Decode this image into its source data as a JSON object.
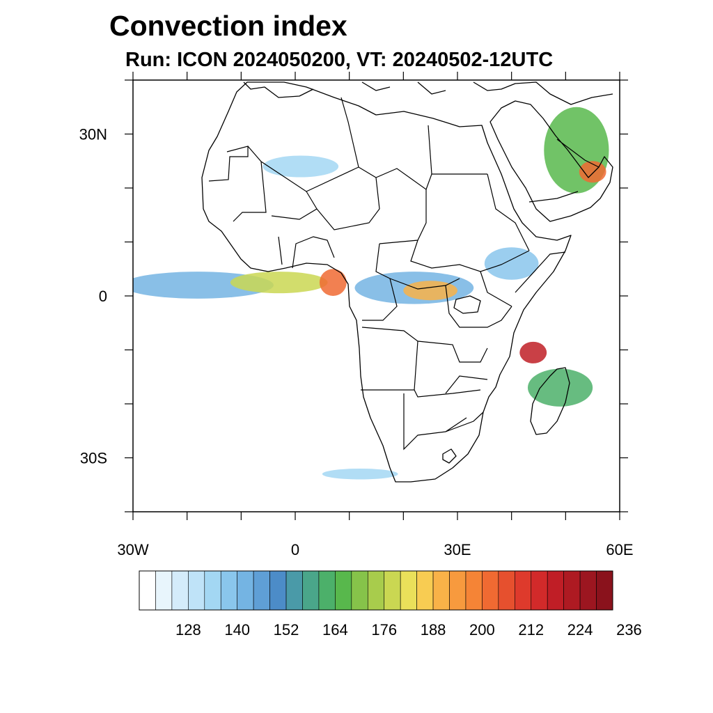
{
  "title": "Convection index",
  "subtitle": "Run: ICON 2024050200,  VT: 20240502-12UTC",
  "map": {
    "region": "Africa",
    "lon_range": [
      -30,
      60
    ],
    "lat_range": [
      -40,
      40
    ],
    "lat_labels": [
      {
        "lat": 30,
        "label": "30N"
      },
      {
        "lat": 0,
        "label": "0"
      },
      {
        "lat": -30,
        "label": "30S"
      }
    ],
    "lon_labels": [
      {
        "lon": -30,
        "label": "30W"
      },
      {
        "lon": 0,
        "label": "0"
      },
      {
        "lon": 30,
        "label": "30E"
      },
      {
        "lon": 60,
        "label": "60E"
      }
    ],
    "lat_ticks": [
      40,
      30,
      20,
      10,
      0,
      -10,
      -20,
      -30,
      -40
    ],
    "lon_ticks": [
      -30,
      -20,
      -10,
      0,
      10,
      20,
      30,
      40,
      50,
      60
    ]
  },
  "colorbar": {
    "colors": [
      "#ffffff",
      "#e8f5fc",
      "#d4ecfa",
      "#bfe3f8",
      "#a3d7f3",
      "#8ac6ec",
      "#74b4e3",
      "#5f9fd6",
      "#4c8cc8",
      "#4a9aa8",
      "#4aa68a",
      "#4cb06a",
      "#58b84c",
      "#86c34a",
      "#a8cc4c",
      "#cad752",
      "#eae05a",
      "#f8cc52",
      "#f9b248",
      "#f79a3e",
      "#f58436",
      "#f06a32",
      "#e6502e",
      "#de3a2c",
      "#d22a2a",
      "#c01e26",
      "#ae1a22",
      "#9c1620",
      "#8a121c"
    ],
    "tick_labels": [
      "128",
      "140",
      "152",
      "164",
      "176",
      "188",
      "200",
      "212",
      "224",
      "236"
    ],
    "tick_values": [
      128,
      140,
      152,
      164,
      176,
      188,
      200,
      212,
      224,
      236
    ]
  },
  "convection_areas": [
    {
      "name": "itcz-atlantic",
      "lon": -18,
      "lat": 2,
      "rx_deg": 14,
      "ry_deg": 2.5,
      "color": "#74b4e3"
    },
    {
      "name": "gulf-of-guinea-core",
      "lon": -3,
      "lat": 2.5,
      "rx_deg": 9,
      "ry_deg": 2,
      "color": "#cad752"
    },
    {
      "name": "cameroon-core",
      "lon": 7,
      "lat": 2.5,
      "rx_deg": 2.5,
      "ry_deg": 2.5,
      "color": "#f06a32"
    },
    {
      "name": "congo-band",
      "lon": 22,
      "lat": 1.5,
      "rx_deg": 11,
      "ry_deg": 3,
      "color": "#74b4e3"
    },
    {
      "name": "congo-core",
      "lon": 25,
      "lat": 1,
      "rx_deg": 5,
      "ry_deg": 1.8,
      "color": "#f9b248"
    },
    {
      "name": "cyclone-core",
      "lon": 44,
      "lat": -10.5,
      "rx_deg": 2.5,
      "ry_deg": 2,
      "color": "#c01e26"
    },
    {
      "name": "cyclone-band",
      "lon": 49,
      "lat": -17,
      "rx_deg": 6,
      "ry_deg": 3.5,
      "color": "#4cb06a"
    },
    {
      "name": "arabian-band",
      "lon": 52,
      "lat": 27,
      "rx_deg": 6,
      "ry_deg": 8,
      "color": "#58b84c"
    },
    {
      "name": "oman-core",
      "lon": 55,
      "lat": 23,
      "rx_deg": 2.5,
      "ry_deg": 2,
      "color": "#f06a32"
    },
    {
      "name": "sahara-streak",
      "lon": 1,
      "lat": 24,
      "rx_deg": 7,
      "ry_deg": 2,
      "color": "#a3d7f3"
    },
    {
      "name": "east-africa",
      "lon": 40,
      "lat": 6,
      "rx_deg": 5,
      "ry_deg": 3,
      "color": "#8ac6ec"
    },
    {
      "name": "southern-streak",
      "lon": 12,
      "lat": -33,
      "rx_deg": 7,
      "ry_deg": 1,
      "color": "#a3d7f3"
    }
  ]
}
